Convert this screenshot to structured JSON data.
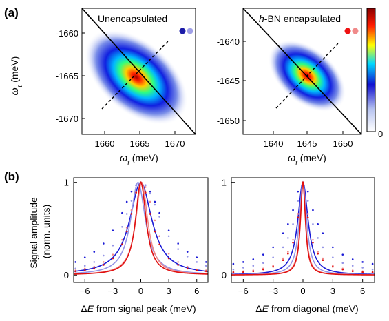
{
  "figure": {
    "panel_a": "(a)",
    "panel_b": "(b)",
    "colorbar_zero": "0"
  },
  "chart_data": [
    {
      "type": "heatmap",
      "panel": "(a) left",
      "title": "Unencapsulated",
      "xlabel": "ωt (meV)",
      "ylabel": "ωτ (meV)",
      "xlabel_parts": [
        "ω",
        "t",
        " (meV)"
      ],
      "ylabel_parts": [
        "ω",
        "τ",
        " (meV)"
      ],
      "xlim": [
        1656.5,
        1671.5
      ],
      "ylim": [
        -1673.5,
        -1656.5
      ],
      "xticks": [
        1660,
        1665,
        1670
      ],
      "yticks": [
        -1660,
        -1665,
        -1670
      ],
      "center": [
        1665,
        -1665
      ],
      "marker_colors": [
        "#1c1ca8",
        "#a0a0e8"
      ]
    },
    {
      "type": "heatmap",
      "panel": "(a) right",
      "title": "h-BN encapsulated",
      "title_parts": [
        "h",
        "-BN encapsulated"
      ],
      "xlabel": "ωt (meV)",
      "xlabel_parts": [
        "ω",
        "t",
        " (meV)"
      ],
      "xlim": [
        1636.5,
        1651.5
      ],
      "ylim": [
        -1651.5,
        -1636.5
      ],
      "xticks": [
        1640,
        1645,
        1650
      ],
      "yticks": [
        -1640,
        -1645,
        -1650
      ],
      "center": [
        1644.5,
        -1645
      ],
      "marker_colors": [
        "#ee1111",
        "#f08a8a"
      ],
      "colorbar": {
        "min": 0,
        "label": "0",
        "colormap": [
          "#ffffff",
          "#0000cc",
          "#00d8ff",
          "#ffff00",
          "#ff0000",
          "#880000"
        ]
      }
    },
    {
      "type": "line",
      "panel": "(b) left",
      "xlabel": "ΔE from signal peak (meV)",
      "xlabel_parts": [
        "Δ",
        "E",
        " from signal peak (meV)"
      ],
      "ylabel": "Signal amplitude (norm. units)",
      "ylabel_lines": [
        "Signal amplitude",
        "(norm. units)"
      ],
      "xlim": [
        -7.2,
        7.2
      ],
      "ylim": [
        -0.08,
        1.05
      ],
      "xticks": [
        -6,
        -3,
        0,
        3,
        6
      ],
      "yticks": [
        0,
        1
      ],
      "series": [
        {
          "color": "#1a1ad6",
          "center": 0.0,
          "gamma": 2.9,
          "x": [
            -7,
            -6,
            -5,
            -4,
            -3,
            -2,
            -1.5,
            -1,
            -0.5,
            0,
            0.5,
            1,
            1.5,
            2,
            3,
            4,
            5,
            6,
            7
          ],
          "values": [
            0.14,
            0.19,
            0.25,
            0.34,
            0.48,
            0.67,
            0.79,
            0.9,
            0.97,
            1.0,
            0.97,
            0.9,
            0.79,
            0.67,
            0.48,
            0.34,
            0.25,
            0.19,
            0.14
          ]
        },
        {
          "color": "#9494e6",
          "center": -0.3,
          "gamma": 1.95,
          "x": [
            -7,
            -6,
            -5,
            -4,
            -3,
            -2,
            -1.5,
            -1,
            -0.5,
            0,
            0.5,
            1,
            1.5,
            2,
            3,
            4,
            5,
            6,
            7
          ],
          "values": [
            0.07,
            0.1,
            0.14,
            0.21,
            0.32,
            0.52,
            0.66,
            0.8,
            0.93,
            0.99,
            0.97,
            0.88,
            0.76,
            0.63,
            0.42,
            0.28,
            0.2,
            0.14,
            0.1
          ]
        },
        {
          "color": "#f08a8a",
          "center": 0.1,
          "gamma": 1.55,
          "x": [
            -7,
            -6,
            -5,
            -4,
            -3,
            -2,
            -1.5,
            -1,
            -0.5,
            0,
            0.5,
            1,
            1.5,
            2,
            3,
            4,
            5,
            6,
            7
          ],
          "values": [
            0.05,
            0.07,
            0.09,
            0.14,
            0.22,
            0.38,
            0.51,
            0.7,
            0.89,
            1.0,
            0.95,
            0.79,
            0.59,
            0.42,
            0.23,
            0.14,
            0.09,
            0.06,
            0.05
          ]
        },
        {
          "color": "#e01010",
          "center": 0.0,
          "gamma": 1.4,
          "x": [
            -7,
            -6,
            -5,
            -4,
            -3,
            -2,
            -1.5,
            -1,
            -0.5,
            0,
            0.5,
            1,
            1.5,
            2,
            3,
            4,
            5,
            6,
            7
          ],
          "values": [
            0.04,
            0.05,
            0.07,
            0.11,
            0.18,
            0.33,
            0.47,
            0.66,
            0.89,
            1.0,
            0.89,
            0.66,
            0.47,
            0.33,
            0.18,
            0.11,
            0.07,
            0.05,
            0.04
          ]
        }
      ]
    },
    {
      "type": "line",
      "panel": "(b) right",
      "xlabel": "ΔE from diagonal (meV)",
      "xlabel_parts": [
        "Δ",
        "E",
        " from diagonal (meV)"
      ],
      "xlim": [
        -7.2,
        7.2
      ],
      "ylim": [
        -0.08,
        1.05
      ],
      "xticks": [
        -6,
        -3,
        0,
        3,
        6
      ],
      "yticks": [
        0,
        1
      ],
      "series": [
        {
          "color": "#1a1ad6",
          "center": 0.0,
          "gamma": 1.25,
          "x": [
            -7,
            -6,
            -5,
            -4,
            -3,
            -2,
            -1.5,
            -1,
            -0.5,
            0,
            0.5,
            1,
            1.5,
            2,
            3,
            4,
            5,
            6,
            7
          ],
          "values": [
            0.12,
            0.14,
            0.17,
            0.22,
            0.3,
            0.45,
            0.55,
            0.7,
            0.9,
            1.0,
            0.9,
            0.7,
            0.55,
            0.45,
            0.3,
            0.22,
            0.17,
            0.14,
            0.12
          ]
        },
        {
          "color": "#9494e6",
          "center": 0.0,
          "gamma": 0.9,
          "x": [
            -7,
            -6,
            -5,
            -4,
            -3,
            -2,
            -1.5,
            -1,
            -0.5,
            0,
            0.5,
            1,
            1.5,
            2,
            3,
            4,
            5,
            6,
            7
          ],
          "values": [
            0.06,
            0.08,
            0.1,
            0.13,
            0.19,
            0.3,
            0.4,
            0.55,
            0.8,
            1.0,
            0.8,
            0.55,
            0.4,
            0.3,
            0.19,
            0.13,
            0.1,
            0.08,
            0.06
          ]
        },
        {
          "color": "#f08a8a",
          "center": 0.0,
          "gamma": 0.65,
          "x": [
            -7,
            -6,
            -5,
            -4,
            -3,
            -2,
            -1.5,
            -1,
            -0.5,
            0,
            0.5,
            1,
            1.5,
            2,
            3,
            4,
            5,
            6,
            7
          ],
          "values": [
            0.03,
            0.04,
            0.05,
            0.07,
            0.1,
            0.18,
            0.25,
            0.38,
            0.66,
            1.0,
            0.66,
            0.38,
            0.25,
            0.18,
            0.1,
            0.07,
            0.05,
            0.04,
            0.03
          ]
        },
        {
          "color": "#e01010",
          "center": 0.0,
          "gamma": 0.6,
          "x": [
            -7,
            -6,
            -5,
            -4,
            -3,
            -2,
            -1.5,
            -1,
            -0.5,
            0,
            0.5,
            1,
            1.5,
            2,
            3,
            4,
            5,
            6,
            7
          ],
          "values": [
            0.03,
            0.03,
            0.04,
            0.06,
            0.09,
            0.16,
            0.23,
            0.35,
            0.62,
            1.0,
            0.62,
            0.35,
            0.23,
            0.16,
            0.09,
            0.06,
            0.04,
            0.03,
            0.03
          ]
        }
      ]
    }
  ]
}
